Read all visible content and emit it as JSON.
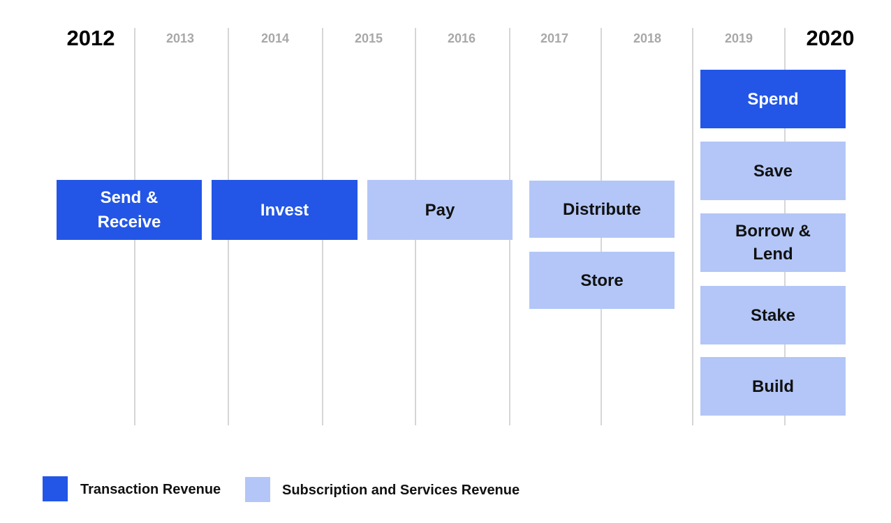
{
  "years": [
    "2012",
    "2013",
    "2014",
    "2015",
    "2016",
    "2017",
    "2018",
    "2019",
    "2020"
  ],
  "products": {
    "send_receive": "Send &\nReceive",
    "invest": "Invest",
    "pay": "Pay",
    "distribute": "Distribute",
    "store": "Store",
    "spend": "Spend",
    "save": "Save",
    "borrow_lend": "Borrow &\nLend",
    "stake": "Stake",
    "build": "Build"
  },
  "legend": {
    "transaction": "Transaction Revenue",
    "subscription": "Subscription and Services Revenue"
  },
  "colors": {
    "transaction": "#2356e6",
    "subscription": "#b3c6f7"
  }
}
